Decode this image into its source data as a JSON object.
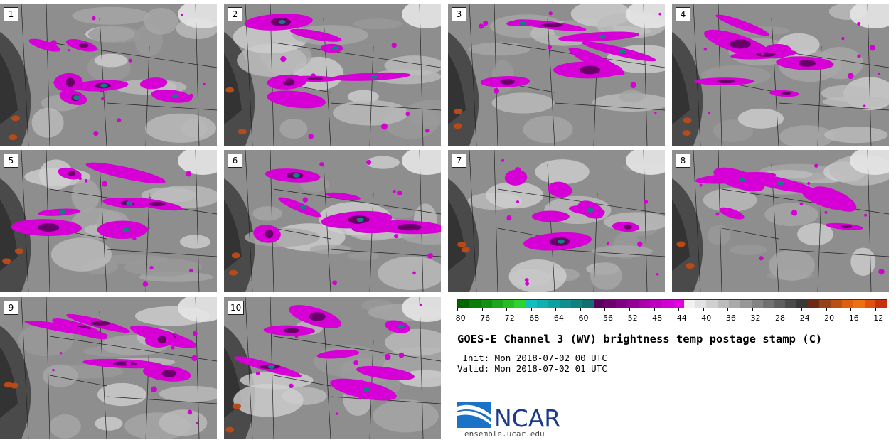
{
  "panels": [
    {
      "label": "1"
    },
    {
      "label": "2"
    },
    {
      "label": "3"
    },
    {
      "label": "4"
    },
    {
      "label": "5"
    },
    {
      "label": "6"
    },
    {
      "label": "7"
    },
    {
      "label": "8"
    },
    {
      "label": "9"
    },
    {
      "label": "10"
    }
  ],
  "colorbar": {
    "tick_labels": [
      "-80",
      "-76",
      "-72",
      "-68",
      "-64",
      "-60",
      "-56",
      "-52",
      "-48",
      "-44",
      "-40",
      "-36",
      "-32",
      "-28",
      "-24",
      "-20",
      "-16",
      "-12"
    ],
    "range": [
      -80,
      -10
    ],
    "colors": [
      "#006400",
      "#0a7a0a",
      "#139013",
      "#1ca61c",
      "#25bc25",
      "#2ed42e",
      "#10c0c0",
      "#10b0b0",
      "#109f9f",
      "#108f8f",
      "#108080",
      "#107070",
      "#5a005a",
      "#6e006e",
      "#820082",
      "#960096",
      "#aa00aa",
      "#be00be",
      "#d200d2",
      "#e000e0",
      "#f2f2f2",
      "#e2e2e2",
      "#d0d0d0",
      "#bdbdbd",
      "#aaaaaa",
      "#979797",
      "#848484",
      "#717171",
      "#5e5e5e",
      "#4a4a4a",
      "#383838",
      "#6e2a10",
      "#96401a",
      "#b85018",
      "#dd6010",
      "#f07010",
      "#e05010",
      "#c83010"
    ]
  },
  "title": "GOES-E Channel 3 (WV) brightness temp postage stamp (C)",
  "init_line": " Init: Mon 2018-07-02 00 UTC",
  "valid_line": "Valid: Mon 2018-07-02 01 UTC",
  "logo": {
    "text": "NCAR",
    "url": "ensemble.ucar.edu"
  }
}
